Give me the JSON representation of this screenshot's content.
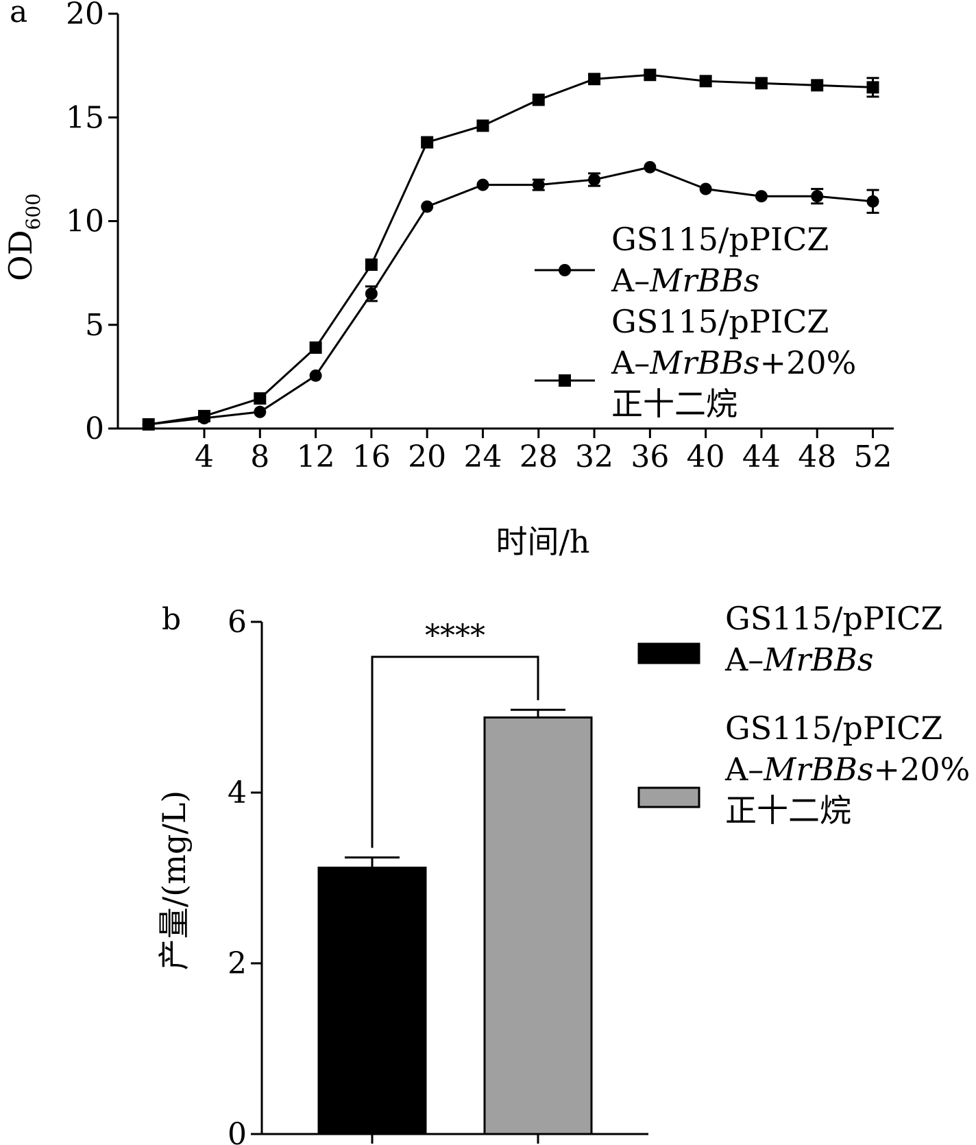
{
  "chart_data": [
    {
      "panel": "a",
      "type": "line",
      "ylabel": "OD",
      "ylabel_sub": "600",
      "xlabel": "时间/h",
      "xticks": [
        4,
        8,
        12,
        16,
        20,
        24,
        28,
        32,
        36,
        40,
        44,
        48,
        52
      ],
      "yticks": [
        0,
        5,
        10,
        15,
        20
      ],
      "xlim": [
        -2.2,
        53.5
      ],
      "ylim": [
        0,
        20
      ],
      "legend_placement": "right-middle",
      "series": [
        {
          "legend_line1": "GS115/pPICZ",
          "legend_prefix": "A–",
          "legend_italic": "MrBBs",
          "legend_suffix": "",
          "legend_line3": "",
          "marker": "circle",
          "x": [
            0,
            4,
            8,
            12,
            16,
            20,
            24,
            28,
            32,
            36,
            40,
            44,
            48,
            52
          ],
          "y": [
            0.2,
            0.5,
            0.8,
            2.55,
            6.5,
            10.7,
            11.75,
            11.75,
            12.0,
            12.6,
            11.55,
            11.2,
            11.2,
            10.95
          ],
          "err": [
            0,
            0,
            0,
            0,
            0.35,
            0,
            0,
            0.25,
            0.3,
            0,
            0,
            0,
            0.35,
            0.55
          ]
        },
        {
          "legend_line1": "GS115/pPICZ",
          "legend_prefix": "A–",
          "legend_italic": "MrBBs",
          "legend_suffix": "+20%",
          "legend_line3": "正十二烷",
          "marker": "square",
          "x": [
            0,
            4,
            8,
            12,
            16,
            20,
            24,
            28,
            32,
            36,
            40,
            44,
            48,
            52
          ],
          "y": [
            0.2,
            0.6,
            1.45,
            3.9,
            7.9,
            13.8,
            14.6,
            15.85,
            16.85,
            17.05,
            16.75,
            16.65,
            16.55,
            16.45
          ],
          "err": [
            0,
            0,
            0,
            0,
            0,
            0,
            0,
            0,
            0,
            0,
            0,
            0,
            0,
            0.45
          ]
        }
      ]
    },
    {
      "panel": "b",
      "type": "bar",
      "ylabel": "产量/(mg/L)",
      "yticks": [
        0,
        2,
        4,
        6
      ],
      "ylim": [
        0,
        6
      ],
      "legend_placement": "right",
      "significance": "****",
      "bars": [
        {
          "legend_line1": "GS115/pPICZ",
          "legend_prefix": "A–",
          "legend_italic": "MrBBs",
          "legend_suffix": "",
          "legend_line3": "",
          "value": 3.12,
          "err": 0.12,
          "color": "#000000"
        },
        {
          "legend_line1": "GS115/pPICZ",
          "legend_prefix": "A–",
          "legend_italic": "MrBBs",
          "legend_suffix": "+20%",
          "legend_line3": "正十二烷",
          "value": 4.88,
          "err": 0.09,
          "color": "#a0a0a0"
        }
      ]
    }
  ]
}
